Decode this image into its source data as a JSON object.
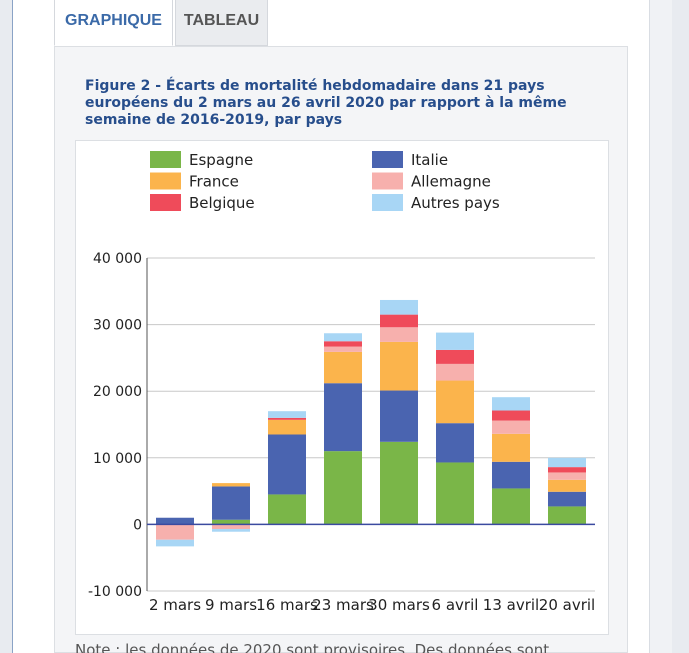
{
  "tabs": [
    {
      "label": "GRAPHIQUE",
      "active": true
    },
    {
      "label": "TABLEAU",
      "active": false
    }
  ],
  "figure_title": "Figure 2 - Écarts de mortalité hebdomadaire dans 21 pays européens du 2 mars au 26 avril 2020 par rapport à la même semaine de 2016-2019, par pays",
  "note": "Note : les données de 2020 sont provisoires. Des données sont",
  "chart_data": {
    "type": "bar",
    "stacked": true,
    "title": "",
    "xlabel": "",
    "ylabel": "",
    "categories": [
      "2 mars",
      "9 mars",
      "16 mars",
      "23 mars",
      "30 mars",
      "6 avril",
      "13 avril",
      "20 avril"
    ],
    "ylim": [
      -10000,
      40000
    ],
    "yticks": [
      -10000,
      0,
      10000,
      20000,
      30000,
      40000
    ],
    "ytick_labels": [
      "-10 000",
      "0",
      "10 000",
      "20 000",
      "30 000",
      "40 000"
    ],
    "grid": true,
    "legend_position": "top",
    "series": [
      {
        "name": "Espagne",
        "color": "#7ab648",
        "values": [
          0,
          700,
          4500,
          11000,
          12400,
          9300,
          5400,
          2700
        ]
      },
      {
        "name": "Italie",
        "color": "#4a64b0",
        "values": [
          1000,
          5000,
          9000,
          10200,
          7700,
          5900,
          4000,
          2200
        ]
      },
      {
        "name": "France",
        "color": "#fbb44c",
        "values": [
          0,
          500,
          2200,
          4700,
          7300,
          6400,
          4200,
          1800
        ]
      },
      {
        "name": "Allemagne",
        "color": "#f7b0ad",
        "values": [
          -2300,
          -700,
          0,
          800,
          2200,
          2500,
          2000,
          1100
        ]
      },
      {
        "name": "Belgique",
        "color": "#ef4b5a",
        "values": [
          0,
          0,
          300,
          800,
          1900,
          2100,
          1500,
          800
        ]
      },
      {
        "name": "Autres pays",
        "color": "#a8d6f5",
        "values": [
          -1000,
          -400,
          1000,
          1200,
          2200,
          2600,
          2000,
          1400
        ]
      }
    ]
  }
}
